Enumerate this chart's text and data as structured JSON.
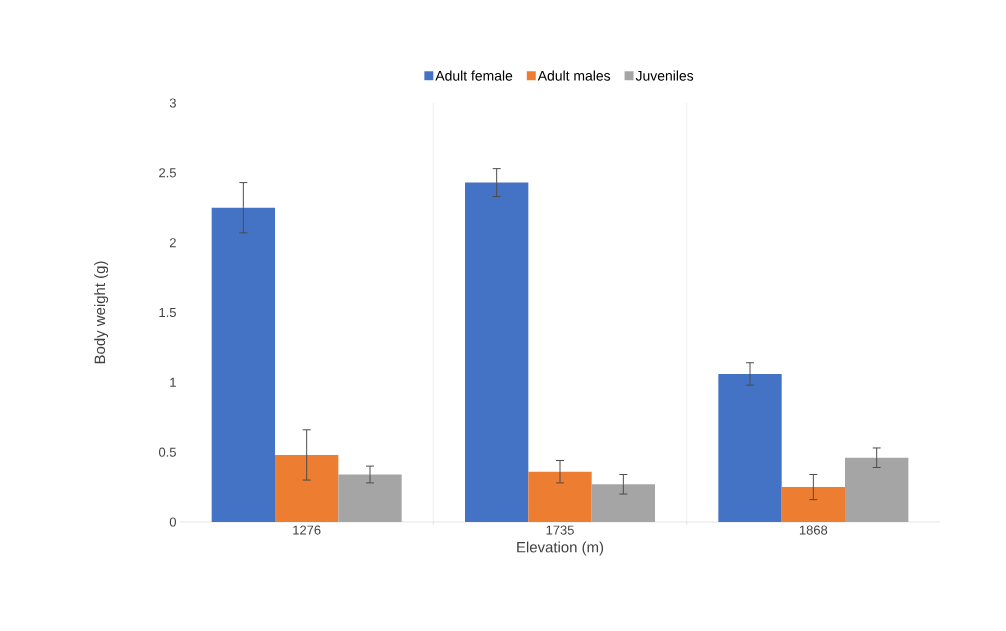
{
  "chart_data": {
    "type": "bar",
    "xlabel": "Elevation (m)",
    "ylabel": "Body weight (g)",
    "categories": [
      "1276",
      "1735",
      "1868"
    ],
    "series": [
      {
        "name": "Adult female",
        "color": "#4472c4",
        "values": [
          2.25,
          2.43,
          1.06
        ],
        "errors": [
          0.18,
          0.1,
          0.08
        ]
      },
      {
        "name": "Adult males",
        "color": "#ed7d31",
        "values": [
          0.48,
          0.36,
          0.25
        ],
        "errors": [
          0.18,
          0.08,
          0.09
        ]
      },
      {
        "name": "Juveniles",
        "color": "#a5a5a5",
        "values": [
          0.34,
          0.27,
          0.46
        ],
        "errors": [
          0.06,
          0.07,
          0.07
        ]
      }
    ],
    "ylim": [
      0,
      3
    ],
    "yticks": [
      0,
      0.5,
      1,
      1.5,
      2,
      2.5,
      3
    ],
    "grid": "x",
    "legend": "top"
  }
}
